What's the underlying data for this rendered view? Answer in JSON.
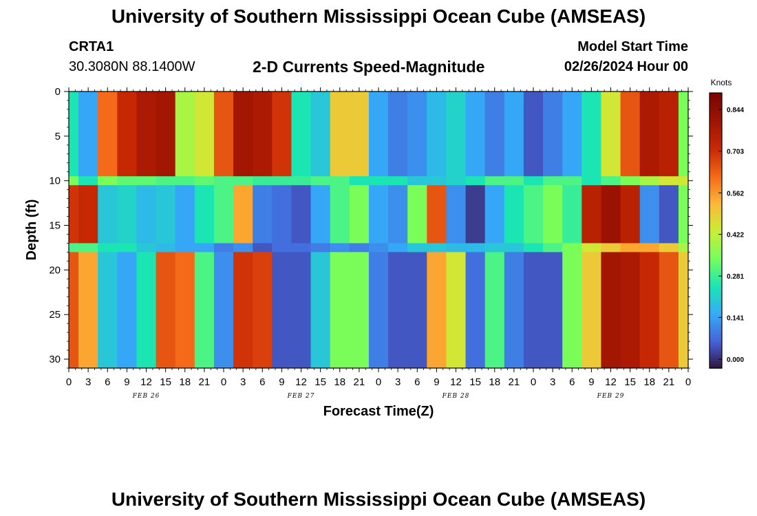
{
  "page": {
    "title_top": "University of Southern Mississippi Ocean Cube (AMSEAS)",
    "title_bottom": "University of Southern Mississippi Ocean Cube (AMSEAS)"
  },
  "header": {
    "station": "CRTA1",
    "coords": "30.3080N  88.1400W",
    "plot_title": "2-D Currents Speed-Magnitude",
    "model_start_label": "Model Start Time",
    "model_start_value": "02/26/2024 Hour 00"
  },
  "chart_data": {
    "type": "heatmap",
    "title": "2-D Currents Speed-Magnitude",
    "xlabel": "Forecast Time(Z)",
    "ylabel": "Depth (ft)",
    "x_range_hours": [
      0,
      96
    ],
    "y_range_ft": [
      0,
      31
    ],
    "x_tick_step_hours": 3,
    "x_tick_labels": [
      "0",
      "3",
      "6",
      "9",
      "12",
      "15",
      "18",
      "21",
      "0",
      "3",
      "6",
      "9",
      "12",
      "15",
      "18",
      "21",
      "0",
      "3",
      "6",
      "9",
      "12",
      "15",
      "18",
      "21",
      "0",
      "3",
      "6",
      "9",
      "12",
      "15",
      "18",
      "21",
      "0"
    ],
    "date_labels": [
      {
        "text": "FEB 26",
        "hour": 12
      },
      {
        "text": "FEB 27",
        "hour": 36
      },
      {
        "text": "FEB 28",
        "hour": 60
      },
      {
        "text": "FEB 29",
        "hour": 84
      }
    ],
    "y_ticks": [
      "0",
      "5",
      "10",
      "15",
      "20",
      "25",
      "30"
    ],
    "y_tick_values": [
      0,
      5,
      10,
      15,
      20,
      25,
      30
    ],
    "colorbar": {
      "unit": "Knots",
      "labels": [
        "0.844",
        "0.703",
        "0.562",
        "0.422",
        "0.281",
        "0.141",
        "0.000"
      ],
      "values": [
        0.844,
        0.703,
        0.562,
        0.422,
        0.281,
        0.141,
        0.0
      ],
      "min": -0.03,
      "max": 0.9,
      "colormap": "turbo"
    },
    "grid": false,
    "layers_ft": [
      {
        "top": 0,
        "bottom": 9.5
      },
      {
        "top": 9.5,
        "bottom": 10.5
      },
      {
        "top": 10.5,
        "bottom": 17
      },
      {
        "top": 17,
        "bottom": 18
      },
      {
        "top": 18,
        "bottom": 31
      }
    ],
    "values_knots": [
      [
        0.25,
        0.15,
        0.62,
        0.72,
        0.78,
        0.8,
        0.4,
        0.45,
        0.65,
        0.8,
        0.78,
        0.7,
        0.25,
        0.2,
        0.5,
        0.5,
        0.15,
        0.1,
        0.12,
        0.18,
        0.22,
        0.15,
        0.1,
        0.15,
        0.05,
        0.1,
        0.15,
        0.25,
        0.45,
        0.65,
        0.78,
        0.75,
        0.35
      ],
      [
        0.35,
        0.25,
        0.35,
        0.32,
        0.32,
        0.3,
        0.3,
        0.32,
        0.3,
        0.3,
        0.28,
        0.28,
        0.28,
        0.3,
        0.3,
        0.25,
        0.25,
        0.25,
        0.2,
        0.2,
        0.22,
        0.25,
        0.3,
        0.3,
        0.25,
        0.3,
        0.3,
        0.25,
        0.3,
        0.35,
        0.4,
        0.45,
        0.45
      ],
      [
        0.7,
        0.72,
        0.2,
        0.22,
        0.18,
        0.2,
        0.15,
        0.25,
        0.3,
        0.55,
        0.1,
        0.08,
        0.05,
        0.15,
        0.3,
        0.35,
        0.15,
        0.12,
        0.35,
        0.65,
        0.12,
        0.02,
        0.15,
        0.25,
        0.3,
        0.35,
        0.28,
        0.75,
        0.82,
        0.75,
        0.12,
        0.05,
        0.35
      ],
      [
        0.3,
        0.3,
        0.25,
        0.25,
        0.2,
        0.18,
        0.15,
        0.15,
        0.1,
        0.12,
        0.05,
        0.08,
        0.08,
        0.1,
        0.12,
        0.1,
        0.12,
        0.15,
        0.2,
        0.2,
        0.18,
        0.18,
        0.2,
        0.2,
        0.25,
        0.3,
        0.35,
        0.45,
        0.5,
        0.55,
        0.55,
        0.5,
        0.4
      ],
      [
        0.65,
        0.55,
        0.2,
        0.15,
        0.25,
        0.65,
        0.62,
        0.3,
        0.12,
        0.7,
        0.68,
        0.05,
        0.05,
        0.2,
        0.35,
        0.35,
        0.1,
        0.05,
        0.05,
        0.55,
        0.45,
        0.08,
        0.3,
        0.1,
        0.05,
        0.05,
        0.35,
        0.5,
        0.8,
        0.78,
        0.72,
        0.65,
        0.5
      ]
    ]
  }
}
